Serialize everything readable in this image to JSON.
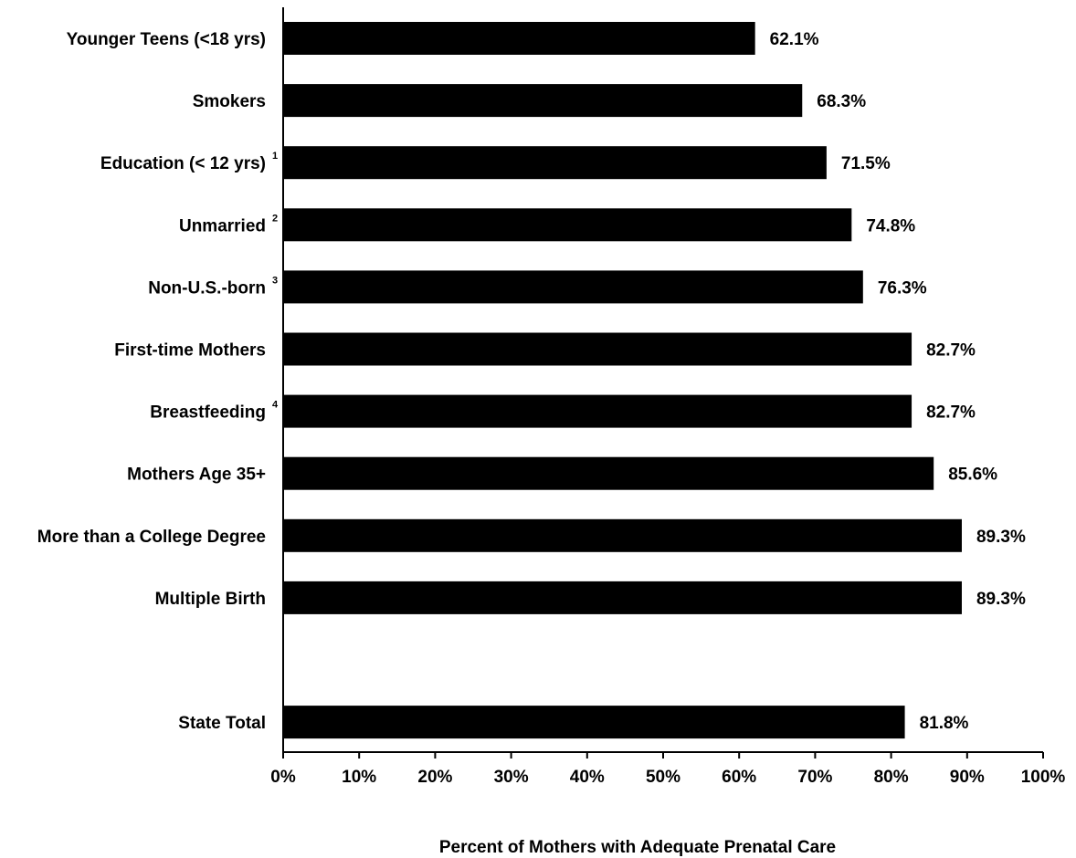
{
  "chart_data": {
    "type": "bar",
    "orientation": "horizontal",
    "categories": [
      {
        "label": "Younger Teens (<18 yrs)",
        "note": ""
      },
      {
        "label": "Smokers",
        "note": ""
      },
      {
        "label": "Education (< 12 yrs)",
        "note": "1"
      },
      {
        "label": "Unmarried",
        "note": "2"
      },
      {
        "label": "Non-U.S.-born",
        "note": "3"
      },
      {
        "label": "First-time Mothers",
        "note": ""
      },
      {
        "label": "Breastfeeding",
        "note": "4"
      },
      {
        "label": "Mothers Age 35+",
        "note": ""
      },
      {
        "label": "More than a College Degree",
        "note": ""
      },
      {
        "label": "Multiple Birth",
        "note": ""
      },
      {
        "label": "",
        "note": ""
      },
      {
        "label": "State Total",
        "note": ""
      }
    ],
    "values": [
      62.1,
      68.3,
      71.5,
      74.8,
      76.3,
      82.7,
      82.7,
      85.6,
      89.3,
      89.3,
      null,
      81.8
    ],
    "value_labels": [
      "62.1%",
      "68.3%",
      "71.5%",
      "74.8%",
      "76.3%",
      "82.7%",
      "82.7%",
      "85.6%",
      "89.3%",
      "89.3%",
      "",
      "81.8%"
    ],
    "xlim": [
      0,
      100
    ],
    "xticks": [
      "0%",
      "10%",
      "20%",
      "30%",
      "40%",
      "50%",
      "60%",
      "70%",
      "80%",
      "90%",
      "100%"
    ],
    "xlabel": "Percent of Mothers with Adequate Prenatal Care",
    "ylabel": "",
    "title": "",
    "grid": false,
    "legend": "none",
    "bar_color": "#000000"
  }
}
